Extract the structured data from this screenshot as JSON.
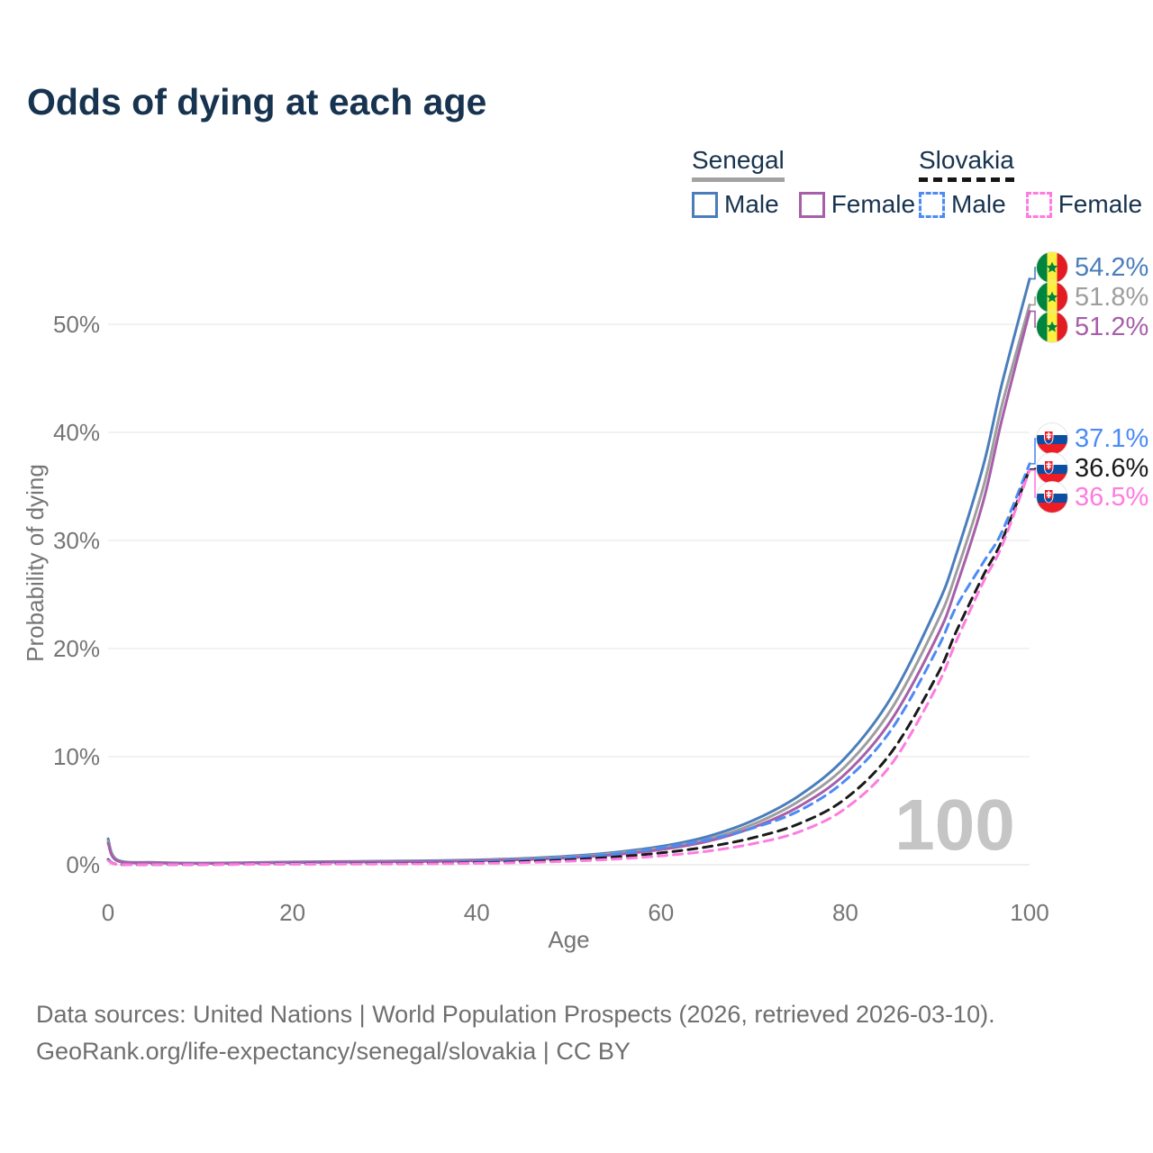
{
  "title": "Odds of dying at each age",
  "legend": {
    "groups": [
      {
        "name": "Senegal",
        "style": "solid",
        "items": [
          {
            "label": "Male",
            "series": 0
          },
          {
            "label": "Female",
            "series": 2
          }
        ]
      },
      {
        "name": "Slovakia",
        "style": "dashed",
        "items": [
          {
            "label": "Male",
            "series": 3
          },
          {
            "label": "Female",
            "series": 5
          }
        ]
      }
    ]
  },
  "colors": {
    "title_text": "#17334f",
    "axis_text": "#757575",
    "gridline": "#ebebeb",
    "watermark": "#c5c5c5",
    "senegal_male": "#4a7ebb",
    "senegal_average": "#9e9e9e",
    "senegal_female": "#a65fa8",
    "slovakia_male": "#4c8bf5",
    "slovakia_average": "#1a1a1a",
    "slovakia_female": "#ff7bdf"
  },
  "chart_data": {
    "type": "line",
    "title": "Odds of dying at each age",
    "xlabel": "Age",
    "ylabel": "Probability of dying",
    "x_ticks": [
      0,
      20,
      40,
      60,
      80,
      100
    ],
    "y_ticks": [
      "0%",
      "10%",
      "20%",
      "30%",
      "40%",
      "50%"
    ],
    "xlim": [
      0,
      100
    ],
    "ylim": [
      0,
      55
    ],
    "grid": "horizontal",
    "legend_position": "top-right",
    "watermark": "100",
    "ages": [
      0,
      1,
      5,
      10,
      15,
      20,
      25,
      30,
      35,
      40,
      45,
      50,
      55,
      60,
      65,
      70,
      75,
      80,
      85,
      90,
      92,
      95,
      97,
      100
    ],
    "series": [
      {
        "name": "Senegal Male",
        "country": "Senegal",
        "sex": "Male",
        "style": "solid",
        "color": "#4a7ebb",
        "end_label": "54.2%",
        "values": [
          2.4,
          0.45,
          0.22,
          0.16,
          0.2,
          0.26,
          0.3,
          0.33,
          0.38,
          0.45,
          0.58,
          0.8,
          1.15,
          1.7,
          2.6,
          4.1,
          6.4,
          9.9,
          15.5,
          24.0,
          28.6,
          37.0,
          44.5,
          54.2
        ]
      },
      {
        "name": "Senegal Average",
        "country": "Senegal",
        "sex": "Both",
        "style": "solid",
        "color": "#9e9e9e",
        "end_label": "51.8%",
        "values": [
          2.2,
          0.4,
          0.2,
          0.14,
          0.18,
          0.23,
          0.27,
          0.3,
          0.34,
          0.41,
          0.53,
          0.72,
          1.05,
          1.55,
          2.35,
          3.75,
          5.9,
          9.1,
          14.4,
          22.5,
          26.9,
          35.0,
          42.5,
          51.8
        ]
      },
      {
        "name": "Senegal Female",
        "country": "Senegal",
        "sex": "Female",
        "style": "solid",
        "color": "#a65fa8",
        "end_label": "51.2%",
        "values": [
          2.0,
          0.36,
          0.18,
          0.13,
          0.16,
          0.2,
          0.24,
          0.27,
          0.31,
          0.37,
          0.47,
          0.64,
          0.93,
          1.4,
          2.15,
          3.45,
          5.4,
          8.4,
          13.4,
          21.2,
          25.6,
          33.7,
          41.2,
          51.2
        ]
      },
      {
        "name": "Slovakia Male",
        "country": "Slovakia",
        "sex": "Male",
        "style": "dashed",
        "color": "#4c8bf5",
        "end_label": "37.1%",
        "values": [
          0.5,
          0.04,
          0.03,
          0.03,
          0.06,
          0.1,
          0.12,
          0.14,
          0.18,
          0.26,
          0.42,
          0.66,
          1.0,
          1.55,
          2.3,
          3.4,
          5.0,
          7.8,
          12.5,
          20.0,
          23.8,
          28.0,
          30.8,
          37.1
        ]
      },
      {
        "name": "Slovakia Average",
        "country": "Slovakia",
        "sex": "Both",
        "style": "dashed",
        "color": "#1a1a1a",
        "end_label": "36.6%",
        "values": [
          0.45,
          0.035,
          0.025,
          0.025,
          0.045,
          0.07,
          0.085,
          0.1,
          0.13,
          0.18,
          0.29,
          0.46,
          0.72,
          1.1,
          1.65,
          2.5,
          3.8,
          6.1,
          10.4,
          17.6,
          21.5,
          26.8,
          30.0,
          36.6
        ]
      },
      {
        "name": "Slovakia Female",
        "country": "Slovakia",
        "sex": "Female",
        "style": "dashed",
        "color": "#ff7bdf",
        "end_label": "36.5%",
        "values": [
          0.4,
          0.03,
          0.02,
          0.02,
          0.035,
          0.05,
          0.06,
          0.07,
          0.09,
          0.13,
          0.2,
          0.33,
          0.52,
          0.82,
          1.25,
          1.95,
          3.05,
          5.2,
          9.3,
          16.6,
          20.6,
          26.2,
          29.5,
          36.5
        ]
      }
    ]
  },
  "footer": {
    "line1": "Data sources: United Nations | World Population Prospects (2026, retrieved 2026-03-10).",
    "line2": "GeoRank.org/life-expectancy/senegal/slovakia | CC BY"
  }
}
